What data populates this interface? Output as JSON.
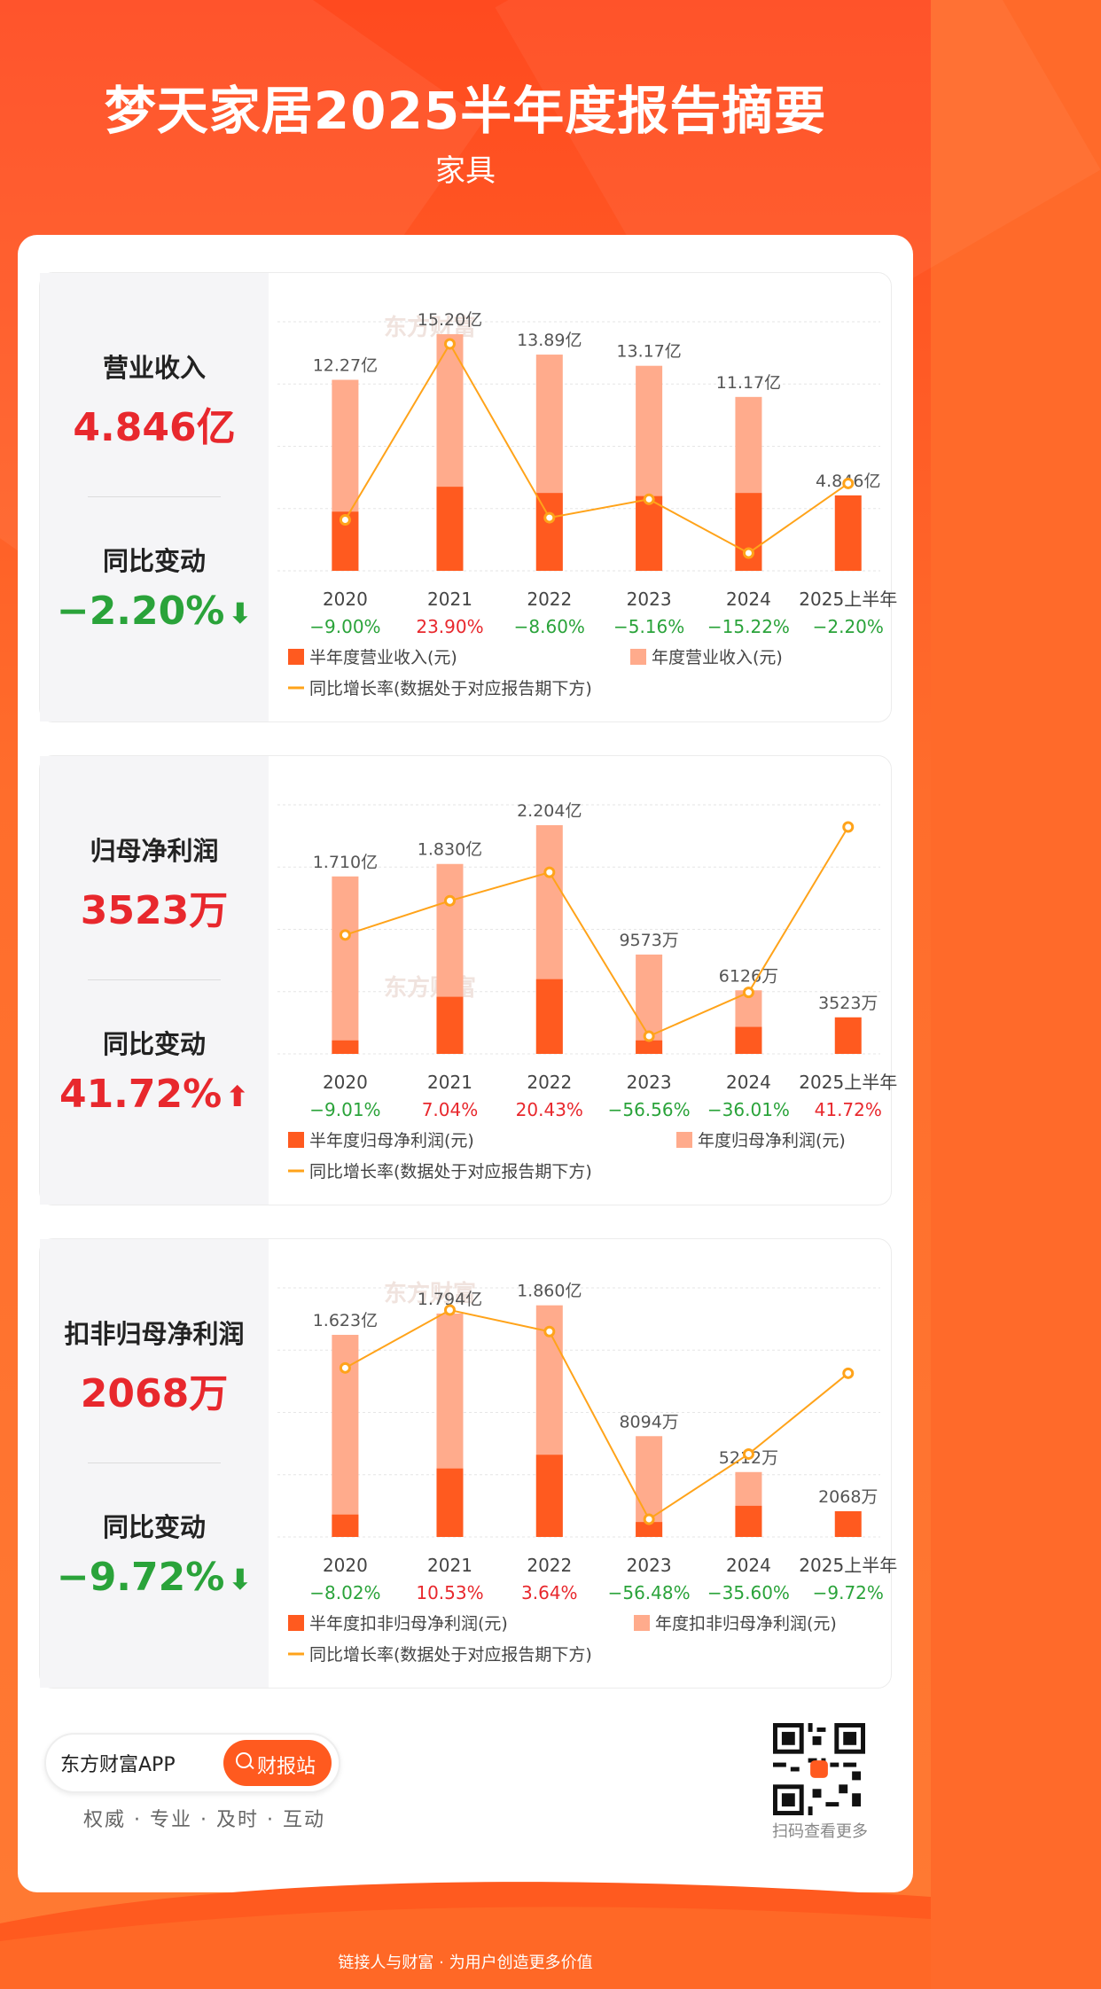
{
  "header": {
    "title": "梦天家居2025半年度报告摘要",
    "subtitle": "家具"
  },
  "colors": {
    "half_bar": "#ff5a1f",
    "annual_bar": "#ffab8c",
    "growth_line": "#ffa31a",
    "positive": "#e8282d",
    "negative": "#2aa33a"
  },
  "panels": [
    {
      "metric_label": "营业收入",
      "metric_value": "4.846亿",
      "change_label": "同比变动",
      "change_value": "−2.20%",
      "change_direction": "down"
    },
    {
      "metric_label": "归母净利润",
      "metric_value": "3523万",
      "change_label": "同比变动",
      "change_value": "41.72%",
      "change_direction": "up"
    },
    {
      "metric_label": "扣非归母净利润",
      "metric_value": "2068万",
      "change_label": "同比变动",
      "change_value": "−9.72%",
      "change_direction": "down"
    }
  ],
  "chart_data": [
    {
      "type": "bar",
      "categories": [
        "2020",
        "2021",
        "2022",
        "2023",
        "2024",
        "2025上半年"
      ],
      "series": [
        {
          "name": "半年度营业收入(元)",
          "values": [
            3.8,
            5.4,
            5.0,
            4.8,
            5.0,
            4.846
          ]
        },
        {
          "name": "年度营业收入(元)",
          "values": [
            12.27,
            15.2,
            13.89,
            13.17,
            11.17,
            null
          ]
        },
        {
          "name": "同比增长率(数据处于对应报告期下方)",
          "values": [
            -9.0,
            23.9,
            -8.6,
            -5.16,
            -15.22,
            -2.2
          ]
        }
      ],
      "bar_labels": [
        "12.27亿",
        "15.20亿",
        "13.89亿",
        "13.17亿",
        "11.17亿",
        "4.846亿"
      ],
      "growth_labels": [
        "−9.00%",
        "23.90%",
        "−8.60%",
        "−5.16%",
        "−15.22%",
        "−2.20%"
      ],
      "ylim": [
        0,
        16
      ]
    },
    {
      "type": "bar",
      "categories": [
        "2020",
        "2021",
        "2022",
        "2023",
        "2024",
        "2025上半年"
      ],
      "series": [
        {
          "name": "半年度归母净利润(元)",
          "values": [
            0.13,
            0.55,
            0.72,
            0.13,
            0.26,
            0.3523
          ]
        },
        {
          "name": "年度归母净利润(元)",
          "values": [
            1.71,
            1.83,
            2.204,
            0.9573,
            0.6126,
            null
          ]
        },
        {
          "name": "同比增长率(数据处于对应报告期下方)",
          "values": [
            -9.01,
            7.04,
            20.43,
            -56.56,
            -36.01,
            41.72
          ]
        }
      ],
      "bar_labels": [
        "1.710亿",
        "1.830亿",
        "2.204亿",
        "9573万",
        "6126万",
        "3523万"
      ],
      "growth_labels": [
        "−9.01%",
        "7.04%",
        "20.43%",
        "−56.56%",
        "−36.01%",
        "41.72%"
      ],
      "ylim": [
        0,
        2.4
      ]
    },
    {
      "type": "bar",
      "categories": [
        "2020",
        "2021",
        "2022",
        "2023",
        "2024",
        "2025上半年"
      ],
      "series": [
        {
          "name": "半年度扣非归母净利润(元)",
          "values": [
            0.18,
            0.55,
            0.66,
            0.12,
            0.25,
            0.2068
          ]
        },
        {
          "name": "年度扣非归母净利润(元)",
          "values": [
            1.623,
            1.794,
            1.86,
            0.8094,
            0.5212,
            null
          ]
        },
        {
          "name": "同比增长率(数据处于对应报告期下方)",
          "values": [
            -8.02,
            10.53,
            3.64,
            -56.48,
            -35.6,
            -9.72
          ]
        }
      ],
      "bar_labels": [
        "1.623亿",
        "1.794亿",
        "1.860亿",
        "8094万",
        "5212万",
        "2068万"
      ],
      "growth_labels": [
        "−8.02%",
        "10.53%",
        "3.64%",
        "−56.48%",
        "−35.60%",
        "−9.72%"
      ],
      "ylim": [
        0,
        2.0
      ]
    }
  ],
  "footer": {
    "app_name": "东方财富APP",
    "search_label": "财报站",
    "slogan": "权威 · 专业 · 及时 · 互动",
    "qr_label": "扫码查看更多",
    "bottom_text": "链接人与财富 · 为用户创造更多价值"
  }
}
